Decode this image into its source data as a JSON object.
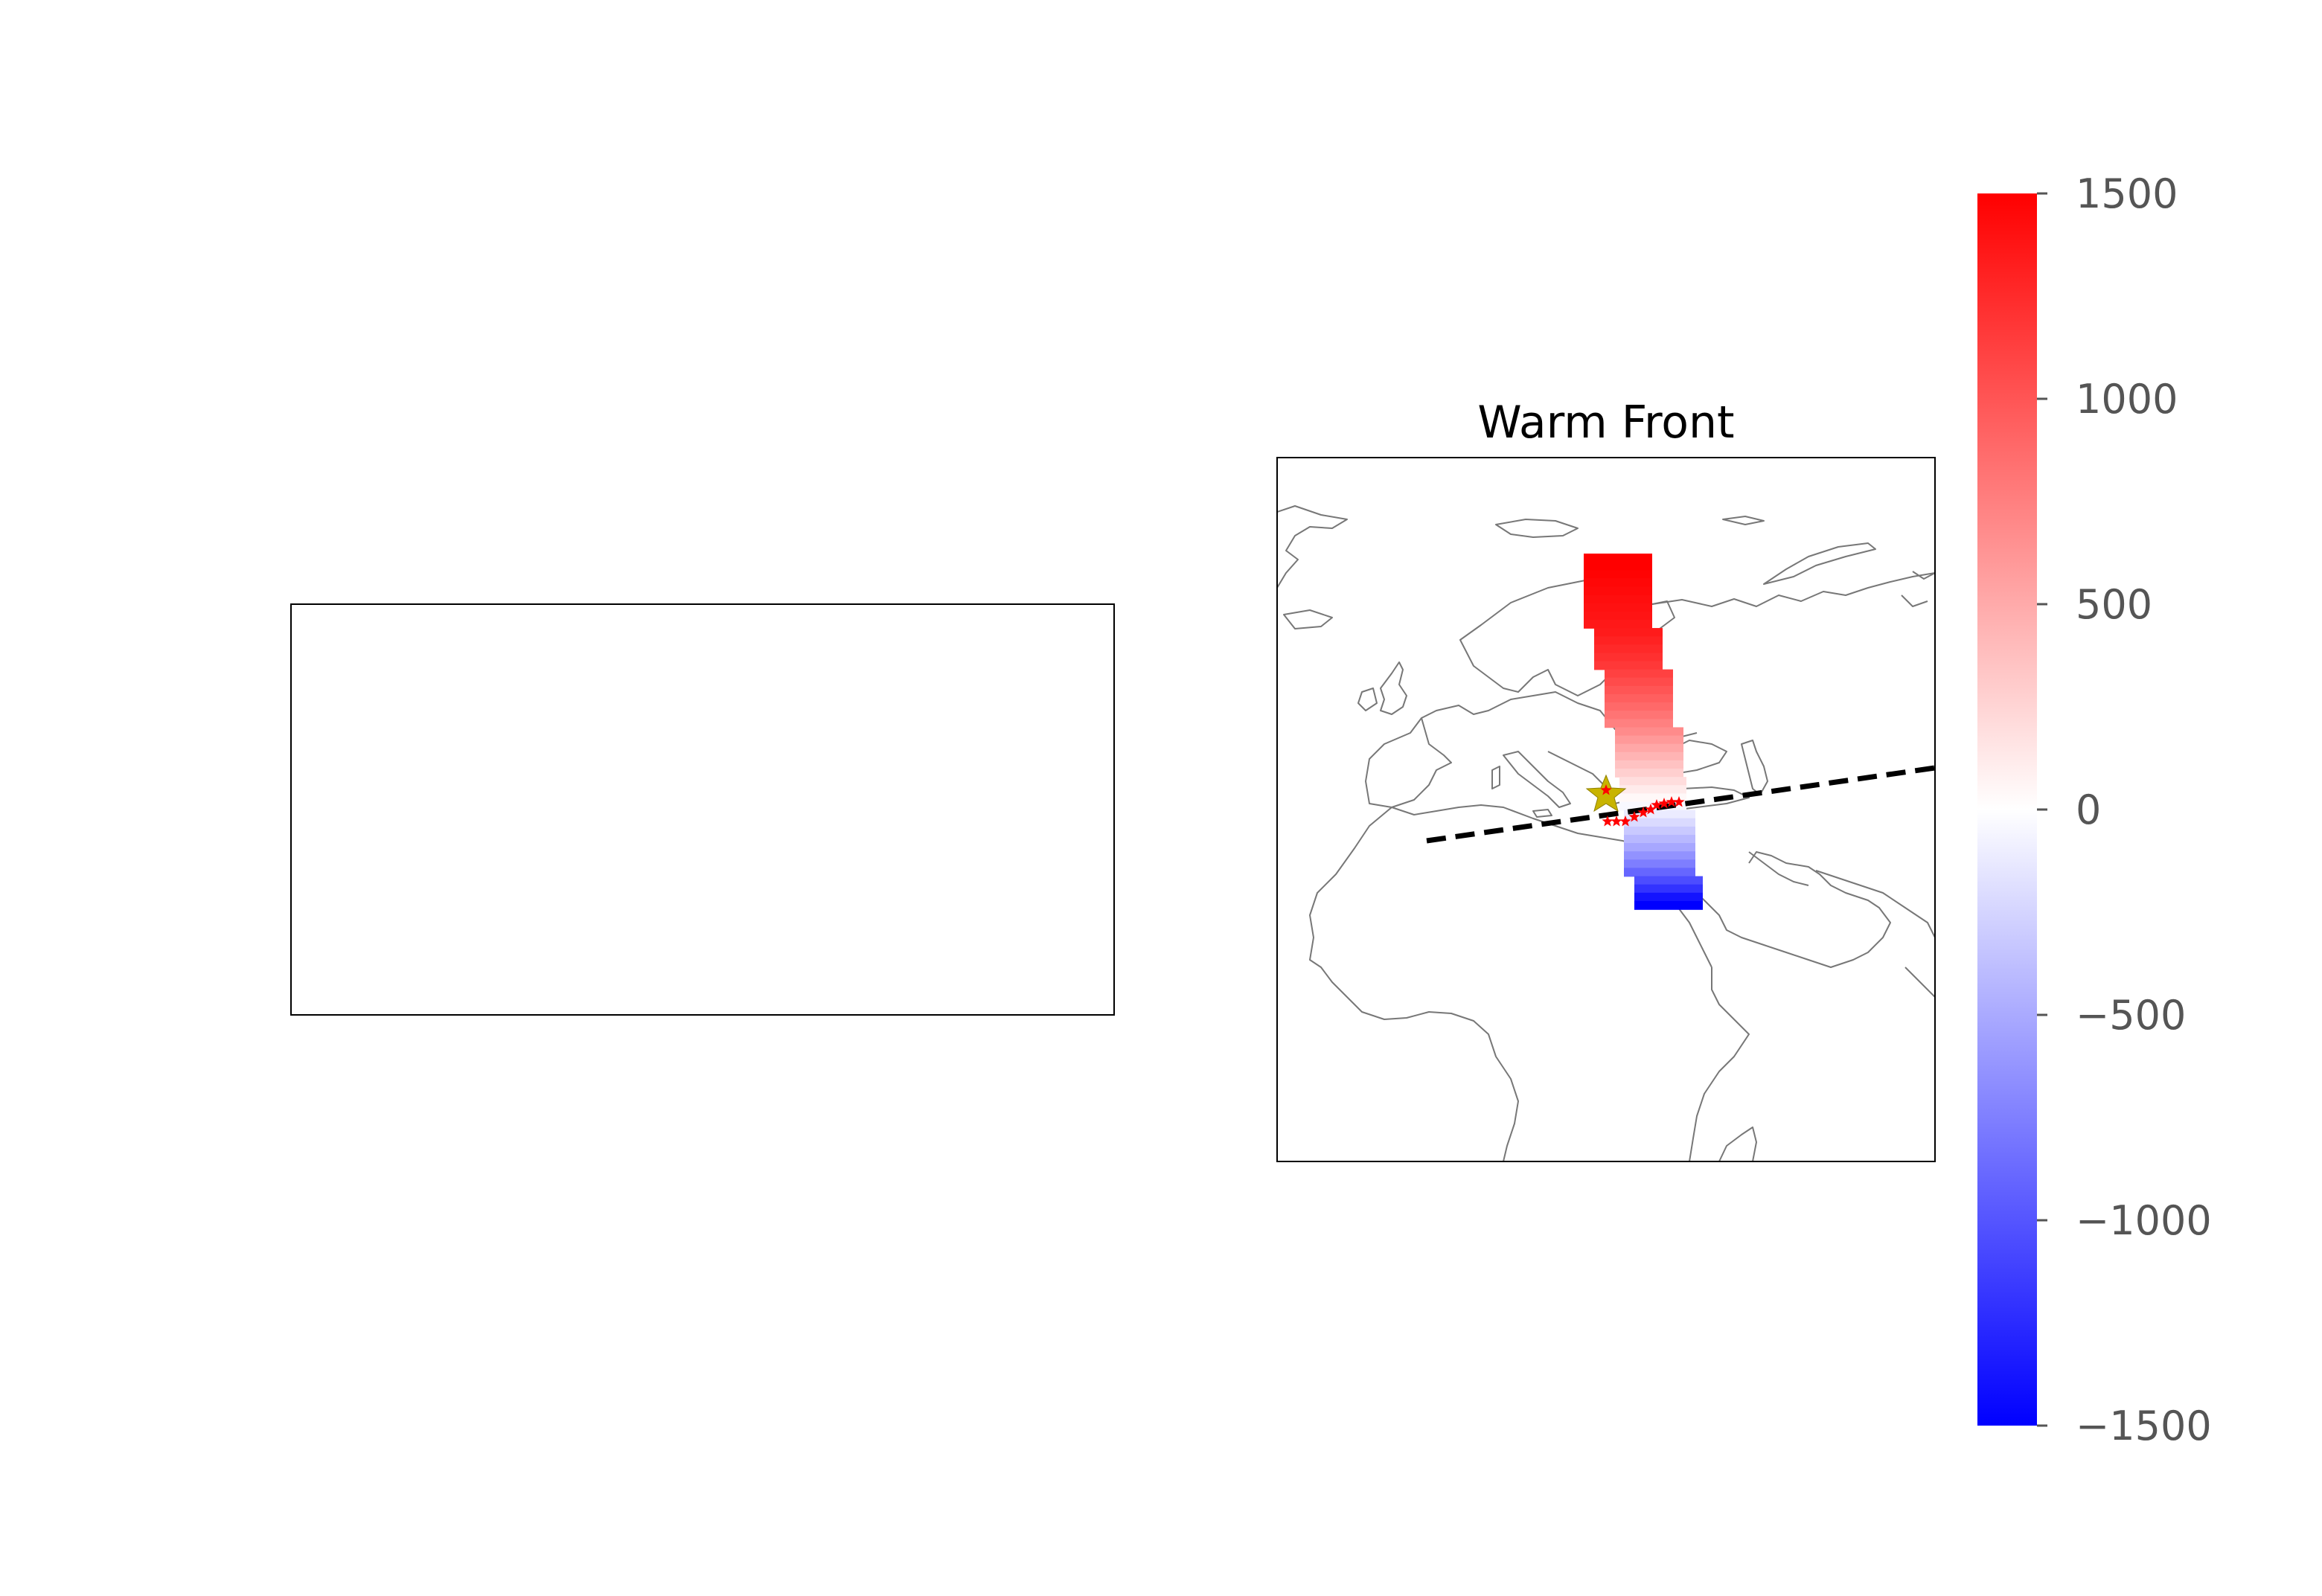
{
  "figure": {
    "title": "Warm Front"
  },
  "colorbar": {
    "colormap": "bwr",
    "min": -1500,
    "max": 1500,
    "ticks": [
      1500,
      1000,
      500,
      0,
      -500,
      -1000,
      -1500
    ],
    "tick_labels": [
      "1500",
      "1000",
      "500",
      "0",
      "−500",
      "−1000",
      "−1500"
    ],
    "colors": {
      "high": "#ff0000",
      "mid": "#ffffff",
      "low": "#0000ff"
    }
  },
  "map": {
    "region": "Europe, North Africa and Middle East",
    "coastline_color": "#777777",
    "front_line_color": "#000000",
    "marker_colors": {
      "big_star": "#c8b400",
      "small_stars": "#ff0000"
    }
  },
  "chart_data": {
    "type": "heatmap",
    "title": "Warm Front",
    "colorbar_range": [
      -1500,
      1500
    ],
    "colorbar_ticks": [
      -1500,
      -1000,
      -500,
      0,
      500,
      1000,
      1500
    ],
    "grid": false,
    "legend": "none",
    "profile_values": [
      1500,
      1500,
      1480,
      1460,
      1440,
      1420,
      1400,
      1380,
      1360,
      1340,
      1300,
      1260,
      1220,
      1170,
      1120,
      1060,
      1000,
      940,
      880,
      820,
      750,
      680,
      600,
      520,
      440,
      360,
      280,
      200,
      120,
      40,
      -40,
      -120,
      -220,
      -320,
      -420,
      -520,
      -640,
      -760,
      -900,
      -1050,
      -1200,
      -1380,
      -1500
    ]
  }
}
